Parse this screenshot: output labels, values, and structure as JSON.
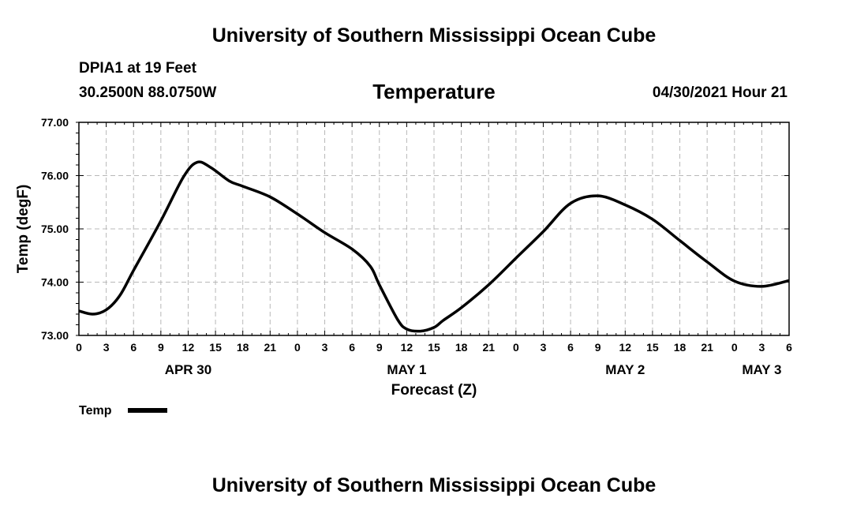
{
  "header": {
    "title": "University of Southern Mississippi Ocean Cube",
    "station": "DPIA1 at 19 Feet",
    "coords": "30.2500N  88.0750W",
    "variable": "Temperature",
    "datetime": "04/30/2021 Hour 21"
  },
  "footer": {
    "title": "University of Southern Mississippi Ocean Cube"
  },
  "chart_data": {
    "type": "line",
    "title": "Temperature",
    "xlabel": "Forecast (Z)",
    "ylabel": "Temp (degF)",
    "xlim": [
      0,
      78
    ],
    "ylim": [
      73.0,
      77.0
    ],
    "y_ticks": [
      73.0,
      74.0,
      75.0,
      76.0,
      77.0
    ],
    "y_tick_labels": [
      "73.00",
      "74.00",
      "75.00",
      "76.00",
      "77.00"
    ],
    "x_ticks": [
      0,
      3,
      6,
      9,
      12,
      15,
      18,
      21,
      24,
      27,
      30,
      33,
      36,
      39,
      42,
      45,
      48,
      51,
      54,
      57,
      60,
      63,
      66,
      69,
      72,
      75,
      78
    ],
    "x_tick_labels": [
      "0",
      "3",
      "6",
      "9",
      "12",
      "15",
      "18",
      "21",
      "0",
      "3",
      "6",
      "9",
      "12",
      "15",
      "18",
      "21",
      "0",
      "3",
      "6",
      "9",
      "12",
      "15",
      "18",
      "21",
      "0",
      "3",
      "6"
    ],
    "date_labels": [
      {
        "x": 12,
        "label": "APR 30"
      },
      {
        "x": 36,
        "label": "MAY 1"
      },
      {
        "x": 60,
        "label": "MAY 2"
      },
      {
        "x": 75,
        "label": "MAY 3"
      }
    ],
    "grid": true,
    "legend_position": "bottom-left",
    "series": [
      {
        "name": "Temp",
        "color": "#000000",
        "x": [
          0,
          1.5,
          3,
          4.5,
          6,
          9,
          11.5,
          13,
          14.5,
          16.5,
          18,
          21,
          24,
          27,
          30,
          32,
          33,
          35,
          36,
          37.5,
          39,
          40,
          42,
          45,
          48,
          51,
          54,
          57,
          60,
          63,
          66,
          69,
          72,
          75,
          78
        ],
        "values": [
          73.46,
          73.4,
          73.48,
          73.75,
          74.22,
          75.15,
          75.98,
          76.25,
          76.15,
          75.9,
          75.8,
          75.6,
          75.28,
          74.93,
          74.62,
          74.3,
          73.95,
          73.3,
          73.12,
          73.08,
          73.15,
          73.28,
          73.52,
          73.95,
          74.45,
          74.95,
          75.48,
          75.62,
          75.45,
          75.18,
          74.78,
          74.38,
          74.02,
          73.92,
          74.03
        ]
      }
    ]
  }
}
